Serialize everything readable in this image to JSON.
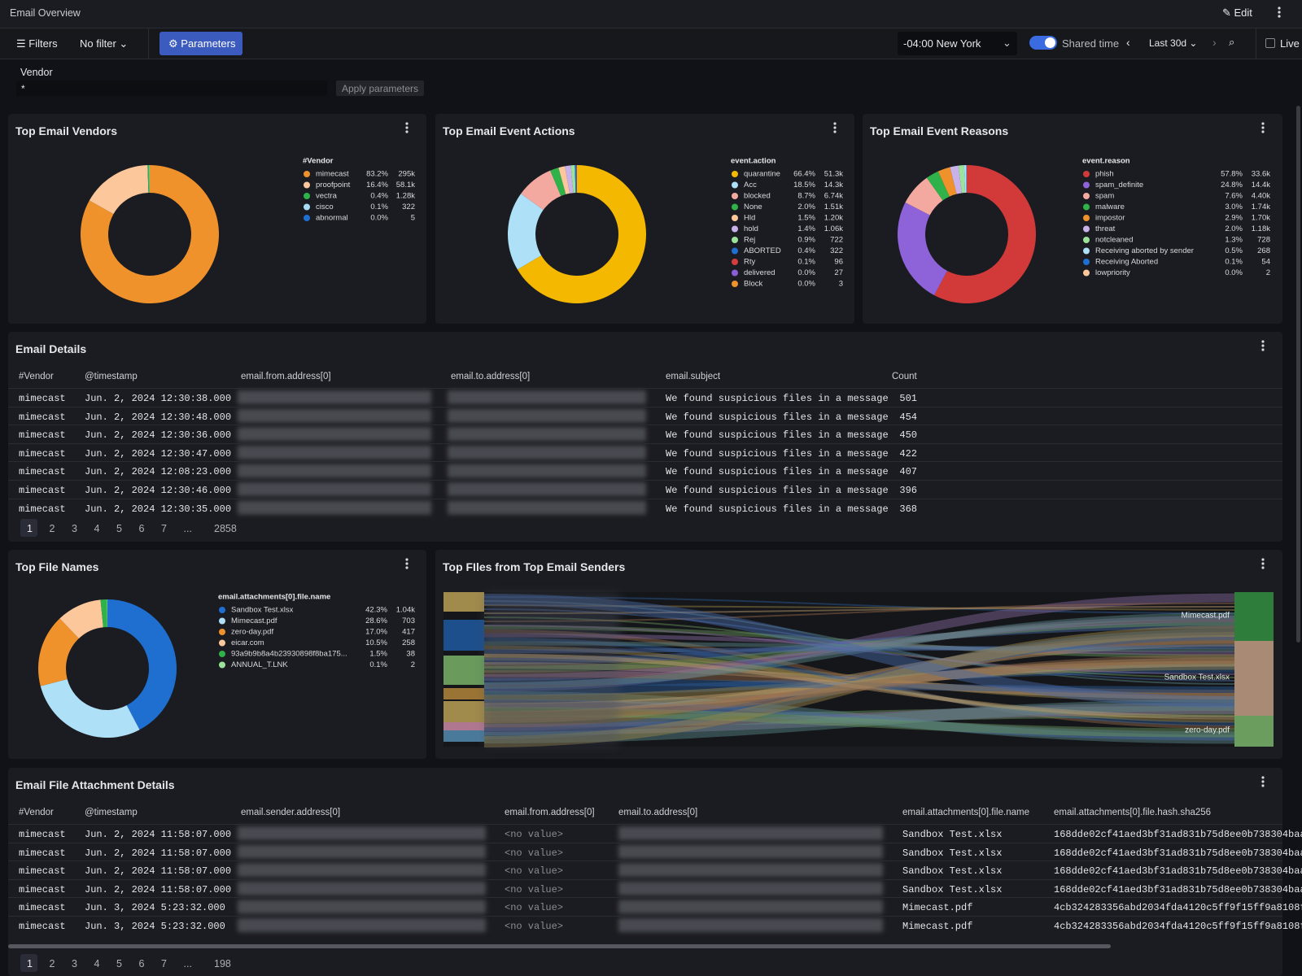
{
  "header": {
    "title": "Email Overview",
    "edit": "Edit"
  },
  "toolbar": {
    "filters": "Filters",
    "filter_value": "No filter",
    "parameters": "Parameters",
    "timezone": "-04:00 New York",
    "shared_time": "Shared time",
    "range": "Last 30d",
    "live": "Live"
  },
  "parameters": {
    "label": "Vendor",
    "value": "*",
    "apply": "Apply parameters"
  },
  "donuts": [
    {
      "title": "Top Email Vendors",
      "legend_title": "#Vendor",
      "categories": [
        "mimecast",
        "proofpoint",
        "vectra",
        "cisco",
        "abnormal"
      ],
      "values": [
        83.2,
        16.4,
        0.4,
        0.1,
        0.0
      ],
      "value_labels": [
        "83.2%",
        "16.4%",
        "0.4%",
        "0.1%",
        "0.0%"
      ],
      "counts": [
        "295k",
        "58.1k",
        "1.28k",
        "322",
        "5"
      ],
      "colors": [
        "#f0922b",
        "#fcc89b",
        "#2db34a",
        "#a8dcf5",
        "#1f6fd1"
      ]
    },
    {
      "title": "Top Email Event Actions",
      "legend_title": "event.action",
      "categories": [
        "quarantine",
        "Acc",
        "blocked",
        "None",
        "Hld",
        "hold",
        "Rej",
        "ABORTED",
        "Rty",
        "delivered",
        "Block"
      ],
      "values": [
        66.4,
        18.5,
        8.7,
        2.0,
        1.5,
        1.4,
        0.9,
        0.4,
        0.1,
        0.0,
        0.0
      ],
      "value_labels": [
        "66.4%",
        "18.5%",
        "8.7%",
        "2.0%",
        "1.5%",
        "1.4%",
        "0.9%",
        "0.4%",
        "0.1%",
        "0.0%",
        "0.0%"
      ],
      "counts": [
        "51.3k",
        "14.3k",
        "6.74k",
        "1.51k",
        "1.20k",
        "1.06k",
        "722",
        "322",
        "96",
        "27",
        "3"
      ],
      "colors": [
        "#f5b800",
        "#aee0f7",
        "#f4a9a0",
        "#2fb24a",
        "#fcc89b",
        "#c9b2ea",
        "#9be29b",
        "#1f6fd1",
        "#d63c3c",
        "#8a5fd6",
        "#f0922b"
      ]
    },
    {
      "title": "Top Email Event Reasons",
      "legend_title": "event.reason",
      "categories": [
        "phish",
        "spam_definite",
        "spam",
        "malware",
        "impostor",
        "threat",
        "notcleaned",
        "Receiving aborted by sender",
        "Receiving Aborted",
        "lowpriority"
      ],
      "values": [
        57.8,
        24.8,
        7.6,
        3.0,
        2.9,
        2.0,
        1.3,
        0.5,
        0.1,
        0.0
      ],
      "value_labels": [
        "57.8%",
        "24.8%",
        "7.6%",
        "3.0%",
        "2.9%",
        "2.0%",
        "1.3%",
        "0.5%",
        "0.1%",
        "0.0%"
      ],
      "counts": [
        "33.6k",
        "14.4k",
        "4.40k",
        "1.74k",
        "1.70k",
        "1.18k",
        "728",
        "268",
        "54",
        "2"
      ],
      "colors": [
        "#d23a3a",
        "#8e62d9",
        "#f4a9a0",
        "#2fb24a",
        "#f0922b",
        "#c9b2ea",
        "#9be29b",
        "#aee0f7",
        "#1f6fd1",
        "#fcc89b"
      ]
    },
    {
      "title": "Top File Names",
      "legend_title": "email.attachments[0].file.name",
      "categories": [
        "Sandbox Test.xlsx",
        "Mimecast.pdf",
        "zero-day.pdf",
        "eicar.com",
        "93a9b9b8a4b23930898f8ba175...",
        "ANNUAL_T.LNK"
      ],
      "values": [
        42.3,
        28.6,
        17.0,
        10.5,
        1.5,
        0.1
      ],
      "value_labels": [
        "42.3%",
        "28.6%",
        "17.0%",
        "10.5%",
        "1.5%",
        "0.1%"
      ],
      "counts": [
        "1.04k",
        "703",
        "417",
        "258",
        "38",
        "2"
      ],
      "colors": [
        "#1f6fd1",
        "#aee0f7",
        "#f0922b",
        "#fcc89b",
        "#2fb24a",
        "#9be29b"
      ]
    }
  ],
  "sankey": {
    "title": "Top FIles from Top Email Senders",
    "targets": [
      "Mimecast.pdf",
      "Sandbox Test.xlsx",
      "zero-day.pdf"
    ]
  },
  "email_details": {
    "title": "Email Details",
    "columns": [
      "#Vendor",
      "@timestamp",
      "email.from.address[0]",
      "email.to.address[0]",
      "email.subject",
      "Count"
    ],
    "rows": [
      {
        "vendor": "mimecast",
        "timestamp": "Jun. 2, 2024 12:30:38.000",
        "subject": "We found suspicious files in a message",
        "count": 501
      },
      {
        "vendor": "mimecast",
        "timestamp": "Jun. 2, 2024 12:30:48.000",
        "subject": "We found suspicious files in a message",
        "count": 454
      },
      {
        "vendor": "mimecast",
        "timestamp": "Jun. 2, 2024 12:30:36.000",
        "subject": "We found suspicious files in a message",
        "count": 450
      },
      {
        "vendor": "mimecast",
        "timestamp": "Jun. 2, 2024 12:30:47.000",
        "subject": "We found suspicious files in a message",
        "count": 422
      },
      {
        "vendor": "mimecast",
        "timestamp": "Jun. 2, 2024 12:08:23.000",
        "subject": "We found suspicious files in a message",
        "count": 407
      },
      {
        "vendor": "mimecast",
        "timestamp": "Jun. 2, 2024 12:30:46.000",
        "subject": "We found suspicious files in a message",
        "count": 396
      },
      {
        "vendor": "mimecast",
        "timestamp": "Jun. 2, 2024 12:30:35.000",
        "subject": "We found suspicious files in a message",
        "count": 368
      }
    ],
    "pages": [
      "1",
      "2",
      "3",
      "4",
      "5",
      "6",
      "7",
      "...",
      "2858"
    ]
  },
  "attachment_details": {
    "title": "Email File Attachment Details",
    "columns": [
      "#Vendor",
      "@timestamp",
      "email.sender.address[0]",
      "email.from.address[0]",
      "email.to.address[0]",
      "email.attachments[0].file.name",
      "email.attachments[0].file.hash.sha256"
    ],
    "rows": [
      {
        "vendor": "mimecast",
        "timestamp": "Jun. 2, 2024 11:58:07.000",
        "from": "<no value>",
        "file": "Sandbox Test.xlsx",
        "hash": "168dde02cf41aed3bf31ad831b75d8ee0b738304baa"
      },
      {
        "vendor": "mimecast",
        "timestamp": "Jun. 2, 2024 11:58:07.000",
        "from": "<no value>",
        "file": "Sandbox Test.xlsx",
        "hash": "168dde02cf41aed3bf31ad831b75d8ee0b738304baa"
      },
      {
        "vendor": "mimecast",
        "timestamp": "Jun. 2, 2024 11:58:07.000",
        "from": "<no value>",
        "file": "Sandbox Test.xlsx",
        "hash": "168dde02cf41aed3bf31ad831b75d8ee0b738304baa"
      },
      {
        "vendor": "mimecast",
        "timestamp": "Jun. 2, 2024 11:58:07.000",
        "from": "<no value>",
        "file": "Sandbox Test.xlsx",
        "hash": "168dde02cf41aed3bf31ad831b75d8ee0b738304baa"
      },
      {
        "vendor": "mimecast",
        "timestamp": "Jun. 3, 2024 5:23:32.000",
        "from": "<no value>",
        "file": "Mimecast.pdf",
        "hash": "4cb324283356abd2034fda4120c5ff9f15ff9a8108f"
      },
      {
        "vendor": "mimecast",
        "timestamp": "Jun. 3, 2024 5:23:32.000",
        "from": "<no value>",
        "file": "Mimecast.pdf",
        "hash": "4cb324283356abd2034fda4120c5ff9f15ff9a8108f"
      }
    ],
    "pages": [
      "1",
      "2",
      "3",
      "4",
      "5",
      "6",
      "7",
      "...",
      "198"
    ]
  }
}
